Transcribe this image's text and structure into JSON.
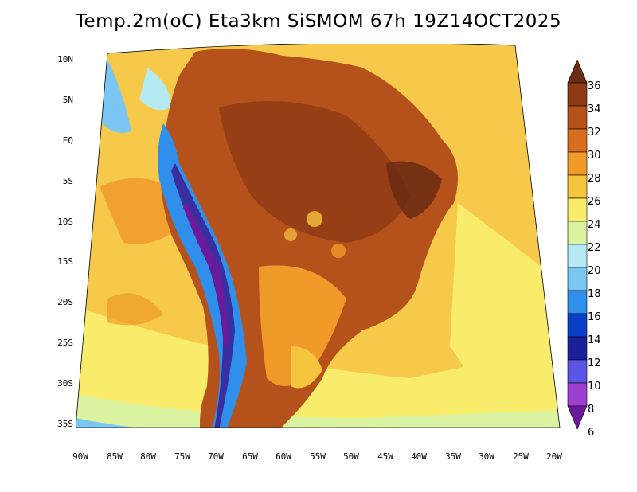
{
  "title": "Temp.2m(oC) Eta3km SiSMOM 67h 19Z14OCT2025",
  "y_axis_labels": [
    "10N",
    "5N",
    "EQ",
    "5S",
    "10S",
    "15S",
    "20S",
    "25S",
    "30S",
    "35S"
  ],
  "x_axis_labels": [
    "90W",
    "85W",
    "80W",
    "75W",
    "70W",
    "65W",
    "60W",
    "55W",
    "50W",
    "45W",
    "40W",
    "35W",
    "30W",
    "25W",
    "20W"
  ],
  "colorbar": {
    "labels": [
      "36",
      "34",
      "32",
      "30",
      "28",
      "26",
      "24",
      "22",
      "20",
      "18",
      "16",
      "14",
      "12",
      "10",
      "8",
      "6"
    ],
    "colors": [
      "#6b2a12",
      "#8e3a14",
      "#b5511b",
      "#d86d1f",
      "#f09a2a",
      "#f6c43d",
      "#f8ec6a",
      "#d9f3a0",
      "#b6eaf3",
      "#7cc6f3",
      "#2f8fea",
      "#0a3fc8",
      "#1c1f9a",
      "#5b55e6",
      "#9d3fd1",
      "#6a1a9a"
    ]
  },
  "colors": {
    "ocean_warm": "#f6c94a",
    "ocean_cool": "#f8ec6a",
    "land_hot": "#b5511b",
    "andes_cold": "#3a2f9e"
  }
}
